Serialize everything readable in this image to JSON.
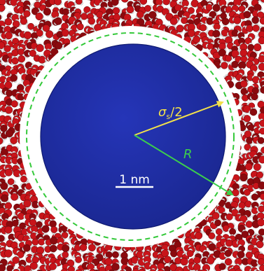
{
  "labels": {
    "sigma_symbol": "σ",
    "sigma_sub": "s",
    "sigma_suffix": "/2",
    "radius": "R",
    "scale": "1 nm"
  },
  "colors": {
    "solute": "#1f2fa6",
    "solute_edge": "#0f1a70",
    "oxygen": "#c8141a",
    "oxygen_dark": "#8a0a0e",
    "hydrogen": "#e8e8e8",
    "cavity": "#ffffff",
    "sigma_arrow": "#f2e04a",
    "radius_arrow": "#3ccf4c",
    "dashed_circle": "#34c93a",
    "scale_text": "#ffffff"
  }
}
